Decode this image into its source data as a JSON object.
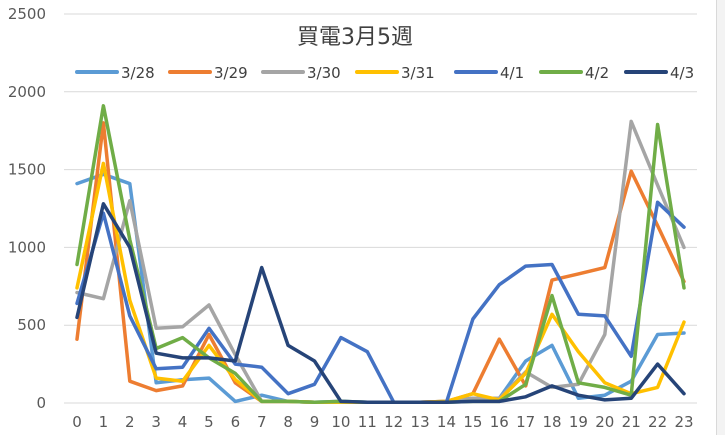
{
  "chart_data": {
    "type": "line",
    "title": "買電3月5週",
    "xlabel": "",
    "ylabel": "",
    "x": [
      0,
      1,
      2,
      3,
      4,
      5,
      6,
      7,
      8,
      9,
      10,
      11,
      12,
      13,
      14,
      15,
      16,
      17,
      18,
      19,
      20,
      21,
      22,
      23
    ],
    "ylim": [
      0,
      2500
    ],
    "yticks": [
      0,
      500,
      1000,
      1500,
      2000,
      2500
    ],
    "grid": true,
    "legend": "top",
    "series": [
      {
        "name": "3/28",
        "color": "#5B9BD5",
        "values": [
          1410,
          1470,
          1410,
          130,
          150,
          160,
          10,
          50,
          10,
          5,
          10,
          5,
          5,
          5,
          10,
          30,
          30,
          270,
          370,
          30,
          50,
          140,
          440,
          450
        ]
      },
      {
        "name": "3/29",
        "color": "#ED7D31",
        "values": [
          410,
          1800,
          140,
          80,
          110,
          440,
          130,
          10,
          10,
          5,
          5,
          5,
          5,
          5,
          10,
          60,
          410,
          110,
          790,
          830,
          870,
          1490,
          1140,
          780
        ]
      },
      {
        "name": "3/30",
        "color": "#A5A5A5",
        "values": [
          710,
          670,
          1300,
          480,
          490,
          630,
          310,
          10,
          10,
          5,
          5,
          5,
          5,
          5,
          5,
          30,
          30,
          200,
          100,
          120,
          440,
          1810,
          1400,
          1000
        ]
      },
      {
        "name": "3/31",
        "color": "#FFC000",
        "values": [
          740,
          1540,
          660,
          160,
          140,
          370,
          150,
          10,
          10,
          5,
          5,
          5,
          5,
          5,
          10,
          60,
          20,
          190,
          570,
          330,
          130,
          60,
          100,
          520
        ]
      },
      {
        "name": "4/1",
        "color": "#4472C4",
        "values": [
          640,
          1220,
          560,
          220,
          230,
          480,
          250,
          230,
          60,
          120,
          420,
          330,
          5,
          5,
          5,
          540,
          760,
          880,
          890,
          570,
          560,
          300,
          1290,
          1130
        ]
      },
      {
        "name": "4/2",
        "color": "#70AD47",
        "values": [
          890,
          1910,
          1050,
          350,
          420,
          290,
          190,
          10,
          10,
          5,
          10,
          5,
          5,
          5,
          5,
          10,
          10,
          120,
          690,
          130,
          100,
          50,
          1790,
          740
        ]
      },
      {
        "name": "4/3",
        "color": "#264478",
        "values": [
          550,
          1280,
          1000,
          320,
          290,
          290,
          270,
          870,
          370,
          270,
          10,
          5,
          5,
          5,
          5,
          10,
          10,
          40,
          110,
          50,
          20,
          30,
          250,
          60
        ]
      }
    ]
  }
}
